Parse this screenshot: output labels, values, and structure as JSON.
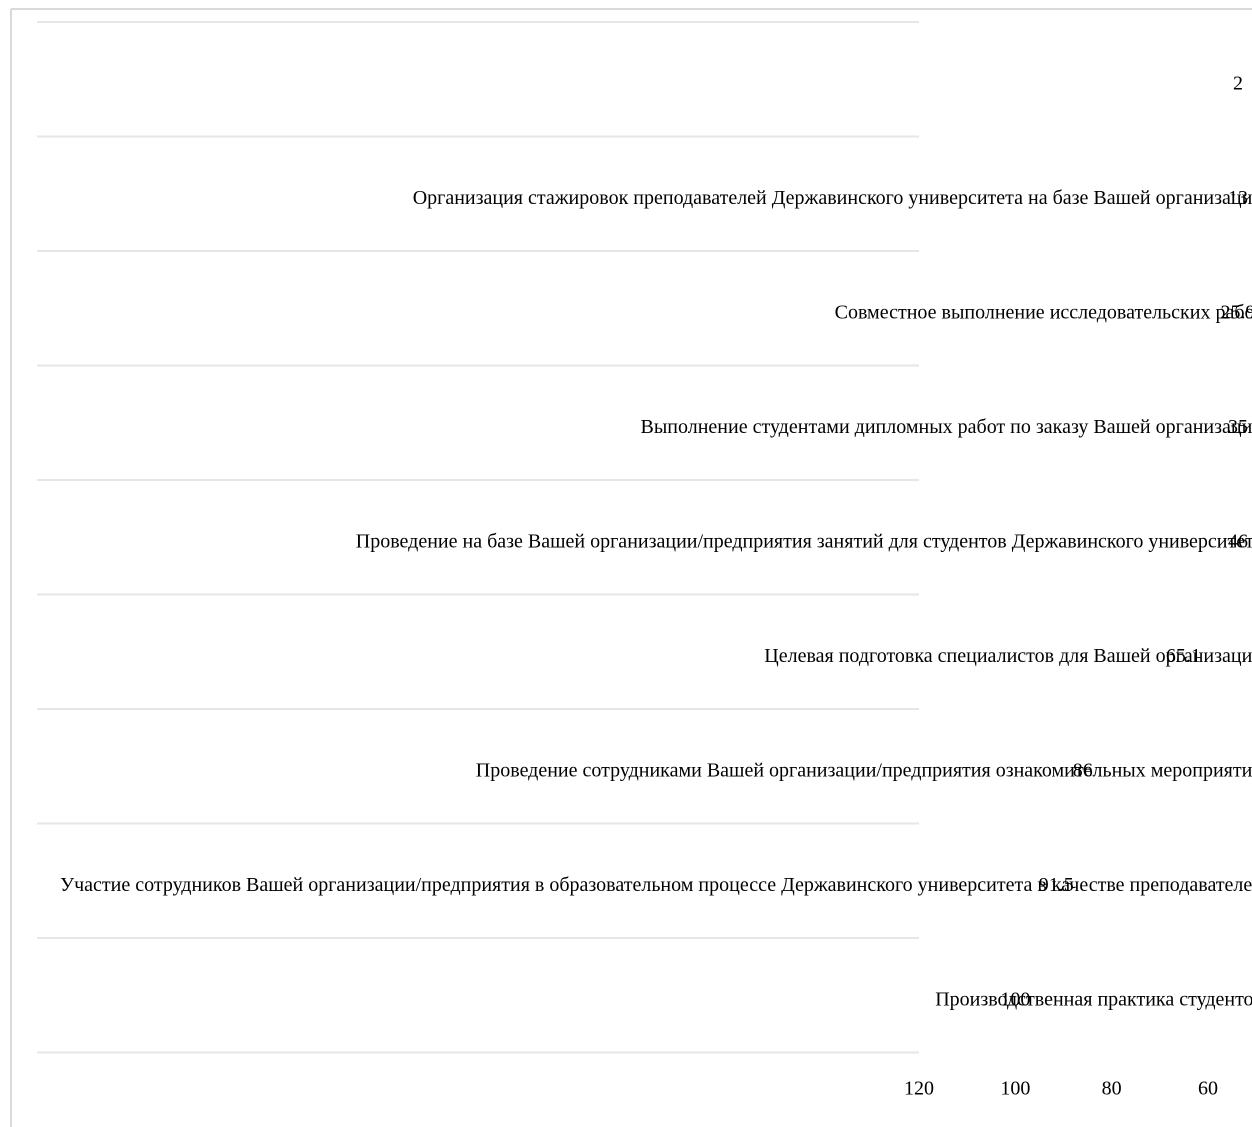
{
  "chart_data": {
    "type": "bar",
    "orientation": "horizontal",
    "x_reversed": true,
    "categories": [
      "",
      "Организация стажировок преподавателей Державинского университета на базе Вашей организации",
      "Совместное выполнение исследовательских работ",
      "Выполнение студентами дипломных работ по заказу Вашей организации",
      "Проведение на базе Вашей организации/предприятия занятий для студентов Державинского университета",
      "Целевая подготовка специалистов для Вашей организации",
      "Проведение сотрудниками Вашей организации/предприятия ознакомительных мероприятий",
      "Участие сотрудников Вашей организации/предприятия в образовательном процессе Державинского университета в качестве преподавателей",
      "Производственная практика студентов"
    ],
    "values": [
      2,
      13,
      25.9,
      35,
      46,
      65.1,
      86,
      91.5,
      100
    ],
    "value_labels": [
      "2",
      "13",
      "25.9",
      "35",
      "46",
      "65.1",
      "86",
      "91.5",
      "100"
    ],
    "x_ticks": [
      "120",
      "100",
      "80",
      "60"
    ],
    "xlim": [
      120,
      60
    ],
    "grid": true,
    "title": "",
    "xlabel": "",
    "ylabel": ""
  }
}
